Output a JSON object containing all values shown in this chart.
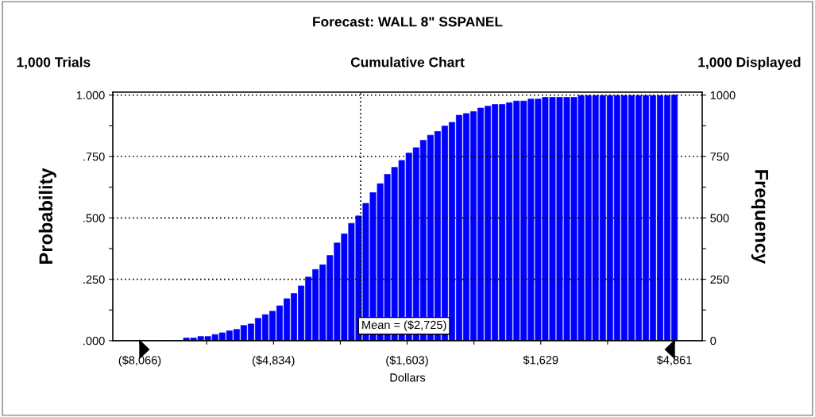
{
  "chart_data": {
    "type": "bar",
    "title": "Forecast: WALL 8\" SSPANEL",
    "subtitle": "Cumulative Chart",
    "annotations": [
      "1,000 Trials",
      "1,000 Displayed"
    ],
    "xlabel": "Dollars",
    "ylabel": "Probability",
    "y2label": "Frequency",
    "x": [
      -7983,
      -7809,
      -7636,
      -7462,
      -7289,
      -7115,
      -6941,
      -6768,
      -6594,
      -6421,
      -6247,
      -6073,
      -5900,
      -5726,
      -5553,
      -5379,
      -5205,
      -5032,
      -4858,
      -4685,
      -4511,
      -4338,
      -4164,
      -3990,
      -3817,
      -3643,
      -3470,
      -3296,
      -3122,
      -2949,
      -2775,
      -2602,
      -2428,
      -2254,
      -2081,
      -1907,
      -1734,
      -1560,
      -1386,
      -1213,
      -1039,
      -866,
      -692,
      -518,
      -345,
      -171,
      3,
      176,
      349,
      523,
      697,
      870,
      1044,
      1217,
      1391,
      1565,
      1738,
      1912,
      2085,
      2259,
      2433,
      2606,
      2780,
      2953,
      3127,
      3301,
      3474,
      3648,
      3821,
      3995,
      4169,
      4342,
      4516,
      4689,
      4863
    ],
    "series": [
      {
        "color": "#0000ff",
        "values": [
          0,
          0,
          0,
          0,
          0,
          0,
          0.011,
          0.011,
          0.017,
          0.017,
          0.025,
          0.032,
          0.04,
          0.046,
          0.062,
          0.068,
          0.091,
          0.106,
          0.12,
          0.142,
          0.171,
          0.192,
          0.223,
          0.259,
          0.29,
          0.309,
          0.347,
          0.398,
          0.435,
          0.478,
          0.508,
          0.559,
          0.603,
          0.639,
          0.677,
          0.706,
          0.734,
          0.764,
          0.786,
          0.816,
          0.837,
          0.852,
          0.874,
          0.889,
          0.918,
          0.925,
          0.933,
          0.947,
          0.955,
          0.962,
          0.962,
          0.969,
          0.976,
          0.976,
          0.984,
          0.984,
          0.991,
          0.991,
          0.991,
          0.991,
          0.991,
          0.998,
          0.998,
          0.998,
          0.998,
          0.998,
          0.998,
          0.998,
          0.998,
          0.998,
          0.998,
          0.998,
          0.998,
          0.998,
          1.0
        ]
      }
    ],
    "xlim": [
      -8719,
      5533
    ],
    "xticks": [
      {
        "value": -8066,
        "label": "($8,066)"
      },
      {
        "value": -6450,
        "label": null
      },
      {
        "value": -4834,
        "label": "($4,834)"
      },
      {
        "value": -3218,
        "label": null
      },
      {
        "value": -1603,
        "label": "($1,603)"
      },
      {
        "value": 13,
        "label": null
      },
      {
        "value": 1629,
        "label": "$1,629"
      },
      {
        "value": 3245,
        "label": null
      },
      {
        "value": 4861,
        "label": "$4,861"
      }
    ],
    "ylim": [
      0,
      1.012
    ],
    "yticks": [
      {
        "value": 0,
        "label": ".000"
      },
      {
        "value": 0.125,
        "label": null
      },
      {
        "value": 0.25,
        "label": ".250"
      },
      {
        "value": 0.375,
        "label": null
      },
      {
        "value": 0.5,
        "label": ".500"
      },
      {
        "value": 0.625,
        "label": null
      },
      {
        "value": 0.75,
        "label": ".750"
      },
      {
        "value": 0.875,
        "label": null
      },
      {
        "value": 1,
        "label": "1.000"
      }
    ],
    "y2lim": [
      0,
      1012
    ],
    "y2ticks": [
      0,
      {
        "value": 125,
        "label": null
      },
      250,
      {
        "value": 375,
        "label": null
      },
      500,
      {
        "value": 625,
        "label": null
      },
      750,
      {
        "value": 875,
        "label": null
      },
      1000
    ],
    "ref_lines": [
      {
        "axis": "x",
        "value": -2725,
        "label": "Mean = ($2,725)",
        "color": "#000000",
        "line_style": "dotted"
      }
    ],
    "grid": "y"
  }
}
